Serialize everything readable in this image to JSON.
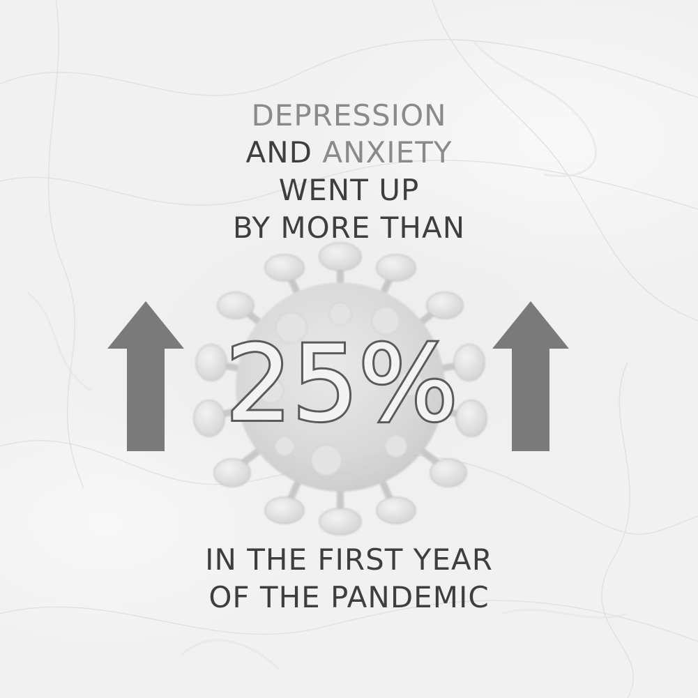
{
  "headline": {
    "line1_accent": "DEPRESSION",
    "line2_word1": "AND",
    "line2_accent": "ANXIETY",
    "line3": "WENT UP",
    "line4": "BY MORE THAN"
  },
  "statistic": {
    "value": "25%"
  },
  "footer": {
    "line1": "IN THE FIRST YEAR",
    "line2": "OF THE PANDEMIC"
  },
  "colors": {
    "text_dark": "#3e3e3e",
    "text_accent": "#8a8a8a",
    "arrow": "#7a7a7a",
    "background": "#f1f1f1"
  },
  "icons": {
    "left_arrow": "arrow-up-icon",
    "right_arrow": "arrow-up-icon",
    "center_graphic": "coronavirus-icon"
  }
}
